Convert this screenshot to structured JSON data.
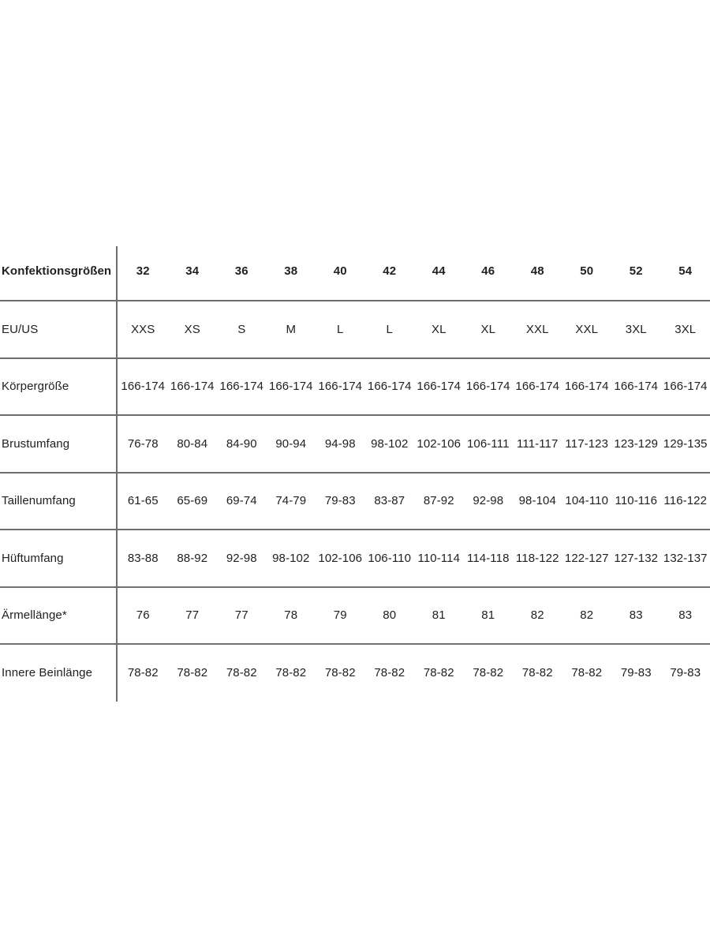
{
  "chart_data": {
    "type": "table",
    "title": "Konfektionsgrößen (size chart)",
    "corner_label": "Konfektionsgrößen",
    "columns": [
      "32",
      "34",
      "36",
      "38",
      "40",
      "42",
      "44",
      "46",
      "48",
      "50",
      "52",
      "54"
    ],
    "rows": [
      {
        "label": "EU/US",
        "values": [
          "XXS",
          "XS",
          "S",
          "M",
          "L",
          "L",
          "XL",
          "XL",
          "XXL",
          "XXL",
          "3XL",
          "3XL"
        ]
      },
      {
        "label": "Körpergröße",
        "values": [
          "166-174",
          "166-174",
          "166-174",
          "166-174",
          "166-174",
          "166-174",
          "166-174",
          "166-174",
          "166-174",
          "166-174",
          "166-174",
          "166-174"
        ]
      },
      {
        "label": "Brustumfang",
        "values": [
          "76-78",
          "80-84",
          "84-90",
          "90-94",
          "94-98",
          "98-102",
          "102-106",
          "106-111",
          "111-117",
          "117-123",
          "123-129",
          "129-135"
        ]
      },
      {
        "label": "Taillenumfang",
        "values": [
          "61-65",
          "65-69",
          "69-74",
          "74-79",
          "79-83",
          "83-87",
          "87-92",
          "92-98",
          "98-104",
          "104-110",
          "110-116",
          "116-122"
        ]
      },
      {
        "label": "Hüftumfang",
        "values": [
          "83-88",
          "88-92",
          "92-98",
          "98-102",
          "102-106",
          "106-110",
          "110-114",
          "114-118",
          "118-122",
          "122-127",
          "127-132",
          "132-137"
        ]
      },
      {
        "label": "Ärmellänge*",
        "values": [
          "76",
          "77",
          "77",
          "78",
          "79",
          "80",
          "81",
          "81",
          "82",
          "82",
          "83",
          "83"
        ]
      },
      {
        "label": "Innere Beinlänge",
        "values": [
          "78-82",
          "78-82",
          "78-82",
          "78-82",
          "78-82",
          "78-82",
          "78-82",
          "78-82",
          "78-82",
          "78-82",
          "79-83",
          "79-83"
        ]
      }
    ],
    "layout": {
      "grid": "horizontal-rules-only",
      "vertical_divider_after": "label-column"
    }
  },
  "colors": {
    "text": "#212121",
    "line": "#6e6e6e",
    "background": "#ffffff"
  }
}
